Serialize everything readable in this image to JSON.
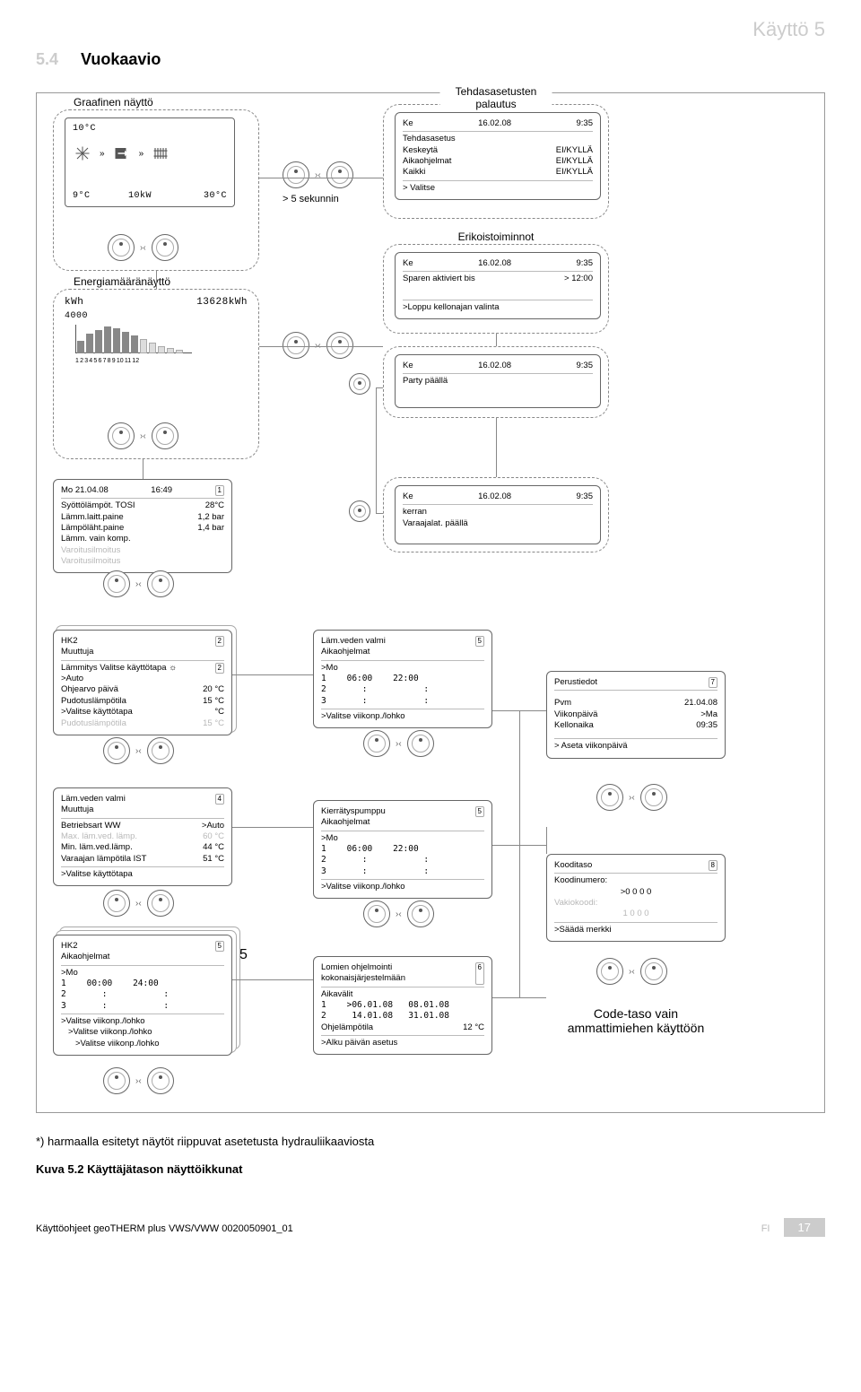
{
  "header": {
    "section_title": "Käyttö 5"
  },
  "subsection": {
    "number": "5.4",
    "title": "Vuokaavio"
  },
  "annotations": {
    "graphic_label": "Graafinen näyttö",
    "time_hint": "> 5 sekunnin",
    "code_note_l1": "Code-taso vain",
    "code_note_l2": "ammattimiehen käyttöön"
  },
  "graphic_display": {
    "tl": "10°C",
    "bl": "9°C",
    "mid": "10kW",
    "right": "30°C"
  },
  "energy_panel": {
    "title": "Energiamääränäyttö",
    "unit1": "kWh",
    "value": "13628kWh",
    "axis_left": "4000",
    "bars": [
      14,
      22,
      26,
      30,
      28,
      24,
      20,
      16,
      12,
      8,
      6,
      4
    ],
    "axis_ticks": [
      "1",
      "2",
      "3",
      "4",
      "5",
      "6",
      "7",
      "8",
      "9",
      "10",
      "11",
      "12"
    ]
  },
  "screens": {
    "factory": {
      "title": "Tehdasasetusten palautus",
      "date_l": "Ke",
      "date_m": "16.02.08",
      "date_r": "9:35",
      "rows": [
        [
          "Tehdasasetus",
          ""
        ],
        [
          "Keskeytä",
          "EI/KYLLÄ"
        ],
        [
          "Aikaohjelmat",
          "EI/KYLLÄ"
        ],
        [
          "Kaikki",
          "EI/KYLLÄ"
        ]
      ],
      "foot": "> Valitse"
    },
    "special": {
      "title": "Erikoistoiminnot",
      "date_l": "Ke",
      "date_m": "16.02.08",
      "date_r": "9:35",
      "row_l": "Sparen aktiviert bis",
      "row_r": "> 12:00",
      "foot": ">Loppu kellonajan valinta"
    },
    "party": {
      "date_l": "Ke",
      "date_m": "16.02.08",
      "date_r": "9:35",
      "line": "Party päällä"
    },
    "kerran": {
      "date_l": "Ke",
      "date_m": "16.02.08",
      "date_r": "9:35",
      "l1": "kerran",
      "l2": "Varaajalat. päällä"
    },
    "status1": {
      "hdr_l": "Mo 21.04.08",
      "hdr_m": "16:49",
      "hdr_r": "1",
      "rows": [
        [
          "Syöttölämpöt. TOSI",
          "28°C"
        ],
        [
          "Lämm.laitt.paine",
          "1,2 bar"
        ],
        [
          "Lämpöläht.paine",
          "1,4 bar"
        ],
        [
          "Lämm. vain komp.",
          ""
        ]
      ],
      "grey1": "Varoitusilmoitus",
      "grey2": "Varoitusilmoitus"
    },
    "hk2a": {
      "title": "HK2",
      "sub": "Muuttuja",
      "page": "2",
      "r1_l": "Lämmitys Valitse käyttötapa ☼",
      "r1_page": "2",
      "r2_l": ">Auto",
      "r3_l": "Ohjearvo päivä",
      "r3_r": "20 °C",
      "r4_l": "Pudotuslämpötila",
      "r4_r": "15 °C",
      "r5_l": ">Valitse käyttötapa",
      "r5_r": "°C",
      "r6_l_grey": "Pudotuslämpötila",
      "r6_r_grey": "15 °C"
    },
    "ww": {
      "title": "Läm.veden valmi",
      "sub": "Muuttuja",
      "page": "4",
      "r1_l": "Betriebsart WW",
      "r1_r": ">Auto",
      "r2_l": "Max. läm.ved. lämp.",
      "r2_r": "60 °C",
      "r3_l": "Min. läm.ved.lämp.",
      "r3_r": "44 °C",
      "r4_l": "Varaajan lämpötila IST",
      "r4_r": "51 °C",
      "foot": ">Valitse käyttötapa"
    },
    "hk2_time": {
      "title": "HK2",
      "sub": "Aikaohjelmat",
      "page": "5",
      "day": ">Mo",
      "t1": "1    00:00    24:00",
      "t2": "2       :           :",
      "t3": "3       :           :",
      "foot": ">Valitse viikonp./lohko",
      "tail5": "5"
    },
    "ww_time": {
      "title": "Läm.veden valmi",
      "sub": "Aikaohjelmat",
      "page": "5",
      "day": ">Mo",
      "t1": "1    06:00    22:00",
      "t2": "2       :           :",
      "t3": "3       :           :",
      "foot": ">Valitse viikonp./lohko"
    },
    "circ_time": {
      "title": "Kierrätyspumppu",
      "sub": "Aikaohjelmat",
      "page": "5",
      "day": ">Mo",
      "t1": "1    06:00    22:00",
      "t2": "2       :           :",
      "t3": "3       :           :",
      "foot": ">Valitse viikonp./lohko"
    },
    "holiday": {
      "title_l1": "Lomien ohjelmointi",
      "title_l2": "kokonaisjärjestelmään",
      "page": "6",
      "sub": "Aikavälit",
      "r1": "1    >06.01.08   08.01.08",
      "r2": "2     14.01.08   31.01.08",
      "r3_l": "Ohjelämpötila",
      "r3_r": "12 °C",
      "foot": ">Alku päivän asetus"
    },
    "basic": {
      "title": "Perustiedot",
      "page": "7",
      "r1_l": "Pvm",
      "r1_r": "21.04.08",
      "r2_l": "Viikonpäivä",
      "r2_r": ">Ma",
      "r3_l": "Kellonaika",
      "r3_r": "09:35",
      "foot": "> Aseta viikonpäivä"
    },
    "code": {
      "title": "Kooditaso",
      "page": "8",
      "r1": "Koodinumero:",
      "r2": ">0 0 0 0",
      "r3": "Vakiokoodi:",
      "r4": "1 0 0 0",
      "foot": ">Säädä merkki"
    }
  },
  "footer_note": "*) harmaalla esitetyt näytöt riippuvat asetetusta hydrauliikaaviosta",
  "caption": "Kuva 5.2 Käyttäjätason näyttöikkunat",
  "page_footer": {
    "left": "Käyttöohjeet geoTHERM plus VWS/VWW 0020050901_01",
    "fi": "FI",
    "pagenum": "17"
  }
}
